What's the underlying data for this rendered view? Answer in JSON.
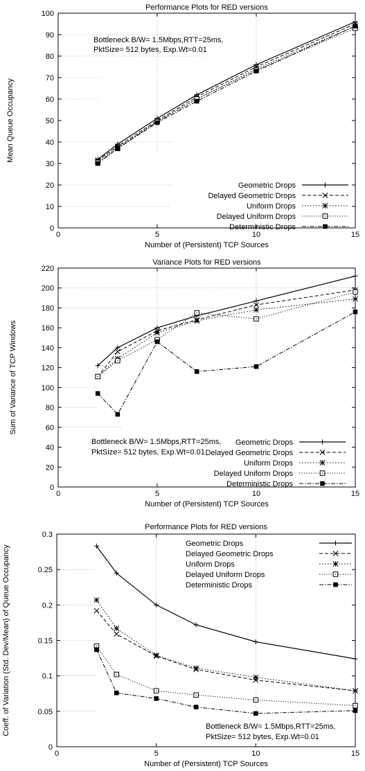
{
  "chart_data": [
    {
      "type": "line",
      "title": "Performance Plots for RED versions",
      "xlabel": "Number of (Persistent) TCP Sources",
      "ylabel": "Mean Queue Occupancy",
      "xlim": [
        0,
        15
      ],
      "ylim": [
        0,
        100
      ],
      "xticks": [
        "0",
        "5",
        "10",
        "15"
      ],
      "yticks": [
        "0",
        "10",
        "20",
        "30",
        "40",
        "50",
        "60",
        "70",
        "80",
        "90",
        "100"
      ],
      "grid": "partial-dotted",
      "annotation": [
        "Bottleneck B/W= 1.5Mbps,RTT=25ms,",
        "PktSize= 512 bytes, Exp.Wt=0.01"
      ],
      "legend_position": "bottom-right",
      "x": [
        2,
        3,
        5,
        7,
        10,
        15
      ],
      "series": [
        {
          "name": "Geometric Drops",
          "values": [
            32,
            39,
            51,
            62,
            76,
            96
          ]
        },
        {
          "name": "Delayed Geometric Drops",
          "values": [
            31.5,
            38,
            50,
            61,
            75,
            95
          ]
        },
        {
          "name": "Uniform Drops",
          "values": [
            31,
            37.5,
            49.5,
            60,
            74,
            94
          ]
        },
        {
          "name": "Delayed Uniform Drops",
          "values": [
            30.5,
            37,
            49.5,
            60,
            73.5,
            93
          ]
        },
        {
          "name": "Deterministic Drops",
          "values": [
            30,
            37,
            49,
            59,
            73,
            94
          ]
        }
      ]
    },
    {
      "type": "line",
      "title": "Variance Plots for RED versions",
      "xlabel": "Number of (Persistent) TCP Sources",
      "ylabel": "Sum of Variance of TCP Windows",
      "xlim": [
        0,
        15
      ],
      "ylim": [
        0,
        220
      ],
      "xticks": [
        "0",
        "5",
        "10",
        "15"
      ],
      "yticks": [
        "0",
        "20",
        "40",
        "60",
        "80",
        "100",
        "120",
        "140",
        "160",
        "180",
        "200",
        "220"
      ],
      "grid": "partial-dotted",
      "annotation": [
        "Bottleneck B/W= 1.5Mbps,RTT=25ms,",
        "PktSize= 512 bytes, Exp.Wt=0.01"
      ],
      "legend_position": "bottom-right",
      "x": [
        2,
        3,
        5,
        7,
        10,
        15
      ],
      "series": [
        {
          "name": "Geometric Drops",
          "values": [
            122,
            140,
            160,
            172,
            187,
            212
          ]
        },
        {
          "name": "Delayed Geometric Drops",
          "values": [
            111,
            136,
            157,
            168,
            183,
            198
          ]
        },
        {
          "name": "Uniform Drops",
          "values": [
            111,
            129,
            155,
            167,
            178,
            189
          ]
        },
        {
          "name": "Delayed Uniform Drops",
          "values": [
            111,
            127,
            148,
            175,
            169,
            196
          ]
        },
        {
          "name": "Deterministic Drops",
          "values": [
            94,
            73,
            146,
            116,
            121,
            176
          ]
        }
      ]
    },
    {
      "type": "line",
      "title": "Performance Plots for RED versions",
      "xlabel": "Number of (Persistent) TCP Sources",
      "ylabel": "Coeff. of Variation (Std. Dev/Mean) of Queue Occupancy",
      "xlim": [
        0,
        15
      ],
      "ylim": [
        0,
        0.3
      ],
      "xticks": [
        "0",
        "5",
        "10",
        "15"
      ],
      "yticks": [
        "0",
        "0.05",
        "0.1",
        "0.15",
        "0.2",
        "0.25",
        "0.3"
      ],
      "grid": "partial-dotted",
      "annotation": [
        "Bottleneck B/W= 1.5Mbps,RTT=25ms,",
        "PktSize= 512 bytes, Exp.Wt=0.01"
      ],
      "legend_position": "top-right",
      "x": [
        2,
        3,
        5,
        7,
        10,
        15
      ],
      "series": [
        {
          "name": "Geometric Drops",
          "values": [
            0.283,
            0.245,
            0.2,
            0.172,
            0.148,
            0.124
          ]
        },
        {
          "name": "Delayed Geometric Drops",
          "values": [
            0.192,
            0.159,
            0.128,
            0.109,
            0.094,
            0.079
          ]
        },
        {
          "name": "Uniform Drops",
          "values": [
            0.207,
            0.167,
            0.129,
            0.111,
            0.098,
            0.079
          ]
        },
        {
          "name": "Delayed Uniform Drops",
          "values": [
            0.142,
            0.102,
            0.079,
            0.073,
            0.066,
            0.058
          ]
        },
        {
          "name": "Deterministic Drops",
          "values": [
            0.137,
            0.076,
            0.068,
            0.056,
            0.047,
            0.051
          ]
        }
      ]
    }
  ]
}
